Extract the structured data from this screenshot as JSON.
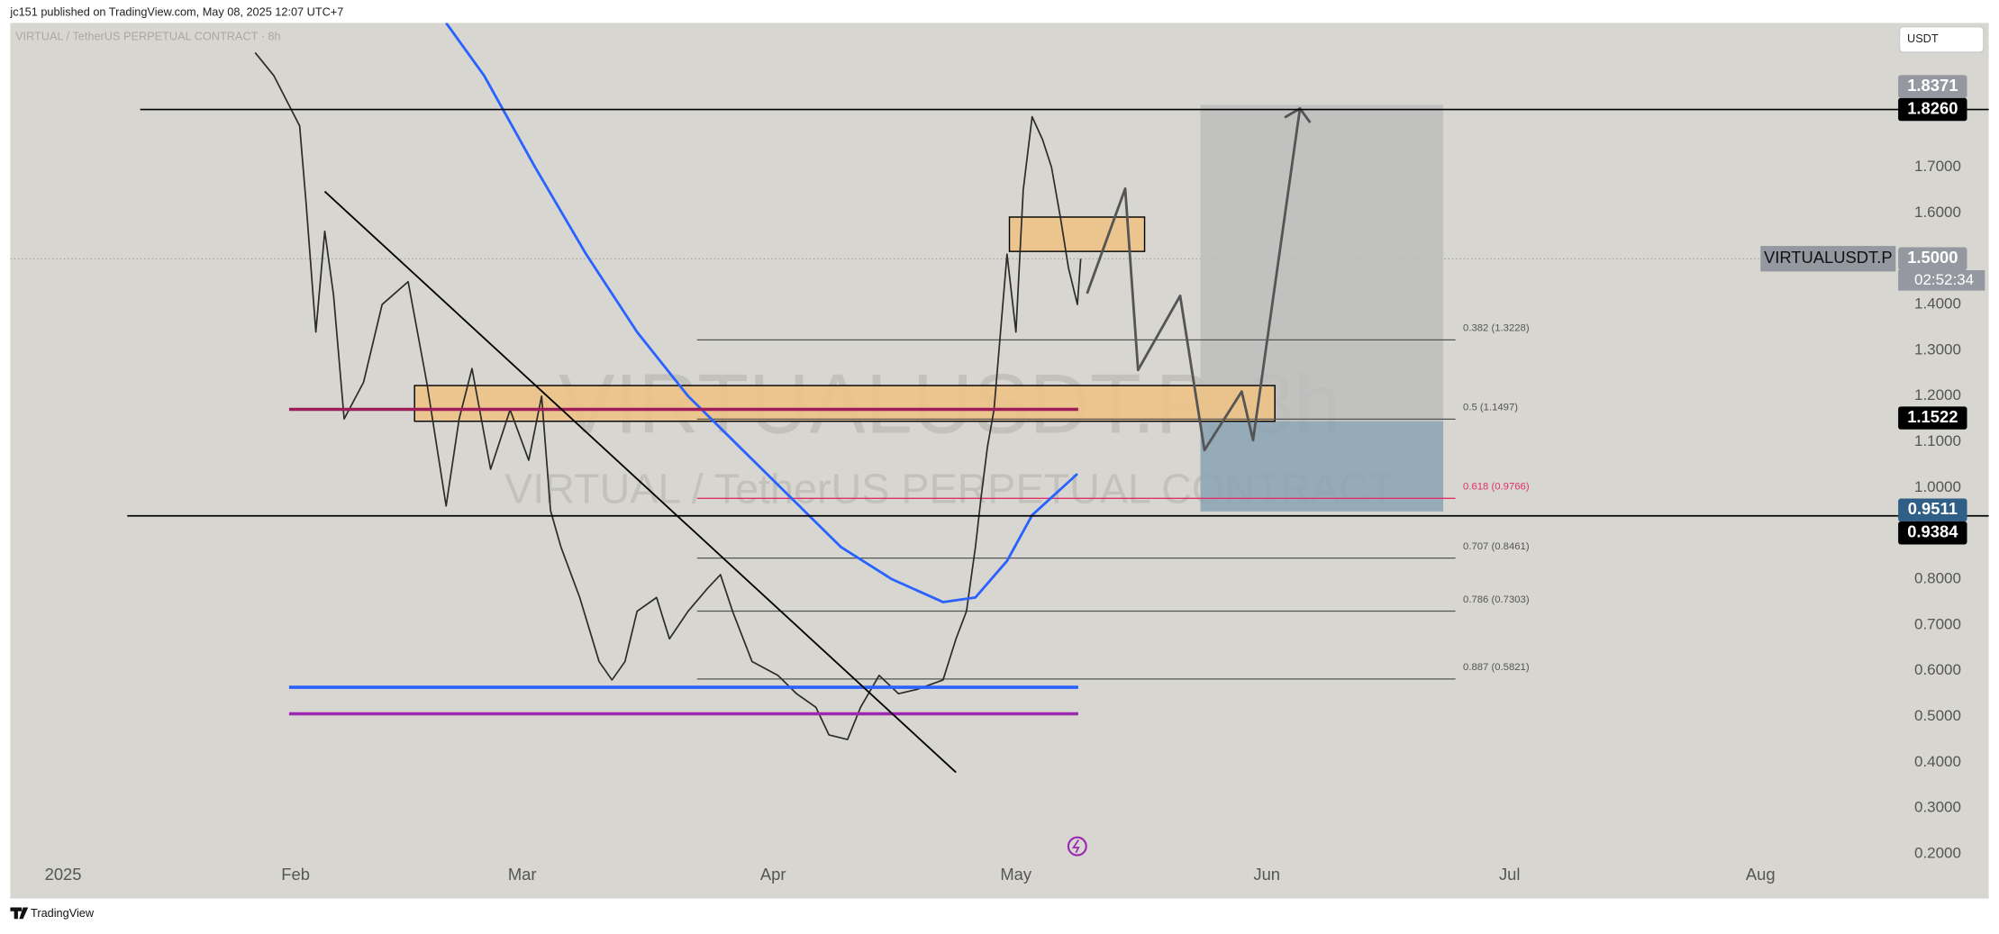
{
  "header": "jc151 published on TradingView.com, May 08, 2025 12:07 UTC+7",
  "footer": "TradingView",
  "chart_data": {
    "type": "line",
    "title": "VIRTUAL / TetherUS PERPETUAL CONTRACT · 8h",
    "watermark": [
      "VIRTUALUSDT.P, 8h",
      "VIRTUAL / TetherUS PERPETUAL CONTRACT"
    ],
    "currency": "USDT",
    "symbol": "VIRTUALUSDT.P",
    "countdown": "02:52:34",
    "xlim": [
      -4.25,
      228.7
    ],
    "ylim": [
      0.2,
      2.015
    ],
    "xticks": [
      {
        "value": 0,
        "label": "2025"
      },
      {
        "value": 31,
        "label": "Feb"
      },
      {
        "value": 59,
        "label": "Mar"
      },
      {
        "value": 90,
        "label": "Apr"
      },
      {
        "value": 120,
        "label": "May"
      },
      {
        "value": 151,
        "label": "Jun"
      },
      {
        "value": 181,
        "label": "Jul"
      },
      {
        "value": 212,
        "label": "Aug"
      }
    ],
    "yticks": [
      {
        "value": 0.2,
        "label": "0.2000"
      },
      {
        "value": 0.3,
        "label": "0.3000"
      },
      {
        "value": 0.4,
        "label": "0.4000"
      },
      {
        "value": 0.5,
        "label": "0.5000"
      },
      {
        "value": 0.6,
        "label": "0.6000"
      },
      {
        "value": 0.7,
        "label": "0.7000"
      },
      {
        "value": 0.8,
        "label": "0.8000"
      },
      {
        "value": 0.9,
        "label": "0.9000"
      },
      {
        "value": 1.0,
        "label": "1.0000"
      },
      {
        "value": 1.1,
        "label": "1.1000"
      },
      {
        "value": 1.2,
        "label": "1.2000"
      },
      {
        "value": 1.3,
        "label": "1.3000"
      },
      {
        "value": 1.4,
        "label": "1.4000"
      },
      {
        "value": 1.6,
        "label": "1.6000"
      },
      {
        "value": 1.7,
        "label": "1.7000"
      }
    ],
    "series": [
      {
        "color": "#2b2b2b",
        "x": [
          26.0,
          28.3,
          31.5,
          32.3,
          33.5,
          34.6,
          35.7,
          37.0,
          39.4,
          41.7,
          44.9,
          47.2,
          49.6,
          51.2,
          52.8,
          55.1,
          57.5,
          59.8,
          61.4,
          62.5,
          63.8,
          66.1,
          68.5,
          70.1,
          71.7,
          73.2,
          75.6,
          77.2,
          79.5,
          81.9,
          83.5,
          85.0,
          87.4,
          90.6,
          92.9,
          95.3,
          96.9,
          99.2,
          100.8,
          103.1,
          105.5,
          107.9,
          111.0,
          112.6,
          113.9,
          115.0,
          115.7,
          116.5,
          117.3,
          118.1,
          118.9,
          120.0,
          120.9,
          122.0,
          123.3,
          124.4,
          125.5,
          126.5,
          127.6,
          128.0
        ],
        "values": [
          1.95,
          1.9,
          1.79,
          1.62,
          1.34,
          1.56,
          1.42,
          1.15,
          1.23,
          1.4,
          1.45,
          1.23,
          0.96,
          1.15,
          1.26,
          1.04,
          1.17,
          1.06,
          1.2,
          0.95,
          0.87,
          0.76,
          0.62,
          0.58,
          0.62,
          0.73,
          0.76,
          0.67,
          0.73,
          0.78,
          0.81,
          0.73,
          0.62,
          0.59,
          0.55,
          0.52,
          0.46,
          0.45,
          0.52,
          0.59,
          0.55,
          0.56,
          0.58,
          0.67,
          0.73,
          0.87,
          0.98,
          1.09,
          1.17,
          1.34,
          1.51,
          1.34,
          1.65,
          1.81,
          1.76,
          1.7,
          1.59,
          1.48,
          1.4,
          1.5
        ]
      },
      {
        "color": "#2962ff",
        "x": [
          49.6,
          54.3,
          60.6,
          66.9,
          73.2,
          79.5,
          85.8,
          92.1,
          98.4,
          104.7,
          111.0,
          115.0,
          118.9,
          122.0,
          127.6
        ],
        "values": [
          2.015,
          1.9,
          1.7,
          1.51,
          1.34,
          1.2,
          1.09,
          0.98,
          0.87,
          0.8,
          0.75,
          0.76,
          0.84,
          0.94,
          1.03
        ]
      }
    ],
    "price_labels": [
      {
        "value": 1.826,
        "label": "1.8260",
        "color": "#000000"
      },
      {
        "value": 1.8371,
        "label": "1.8371",
        "color": "#9598a1"
      },
      {
        "value": 1.5,
        "label": "1.5000",
        "color": "#9598a1"
      },
      {
        "value": 1.1522,
        "label": "1.1522",
        "color": "#000000"
      },
      {
        "value": 0.9511,
        "label": "0.9511",
        "color": "#2f5f86"
      },
      {
        "value": 0.9384,
        "label": "0.9384",
        "color": "#000000"
      }
    ],
    "hlines": [
      {
        "value": 1.826,
        "x": [
          11.8,
          228.7
        ],
        "color": "#000000",
        "width": 1.2
      },
      {
        "value": 0.9384,
        "x": [
          10.2,
          228.7
        ],
        "color": "#000000",
        "width": 1.2
      },
      {
        "value": 1.171,
        "x": [
          30.2,
          127.7
        ],
        "color": "#9c1d5a",
        "width": 2.5
      },
      {
        "value": 0.564,
        "x": [
          30.2,
          127.7
        ],
        "color": "#2962ff",
        "width": 2.5
      },
      {
        "value": 0.506,
        "x": [
          30.2,
          127.7
        ],
        "color": "#9c27b0",
        "width": 2.5
      }
    ],
    "fib_x": [
      80.6,
      174.3
    ],
    "fib": [
      {
        "label": "0.382 (1.3228)",
        "value": 1.3228,
        "color": "#555555"
      },
      {
        "label": "0.5 (1.1497)",
        "value": 1.1497,
        "color": "#555555"
      },
      {
        "label": "0.618 (0.9766)",
        "value": 0.9766,
        "color": "#e0306a"
      },
      {
        "label": "0.707 (0.8461)",
        "value": 0.8461,
        "color": "#555555"
      },
      {
        "label": "0.786 (0.7303)",
        "value": 0.7303,
        "color": "#555555"
      },
      {
        "label": "0.887 (0.5821)",
        "value": 0.5821,
        "color": "#555555"
      }
    ],
    "zones": [
      {
        "x": [
          142.8,
          172.8
        ],
        "y": [
          1.145,
          1.836
        ],
        "color": "#bdbdbd"
      },
      {
        "x": [
          142.8,
          172.8
        ],
        "y": [
          0.948,
          1.145
        ],
        "color": "#8aa3b3"
      },
      {
        "x": [
          45.7,
          152.0
        ],
        "y": [
          1.145,
          1.223
        ],
        "color": "#eec386"
      },
      {
        "x": [
          119.2,
          135.9
        ],
        "y": [
          1.516,
          1.591
        ],
        "color": "#eec386"
      }
    ],
    "trendline": {
      "x": [
        34.6,
        112.6
      ],
      "y": [
        1.647,
        0.378
      ],
      "color": "#000000"
    },
    "projection": {
      "x": [
        128.8,
        133.5,
        135.1,
        140.3,
        143.3,
        147.9,
        149.3,
        155.1
      ],
      "y": [
        1.424,
        1.653,
        1.257,
        1.419,
        1.082,
        1.21,
        1.104,
        1.828
      ],
      "color": "#555555"
    }
  }
}
